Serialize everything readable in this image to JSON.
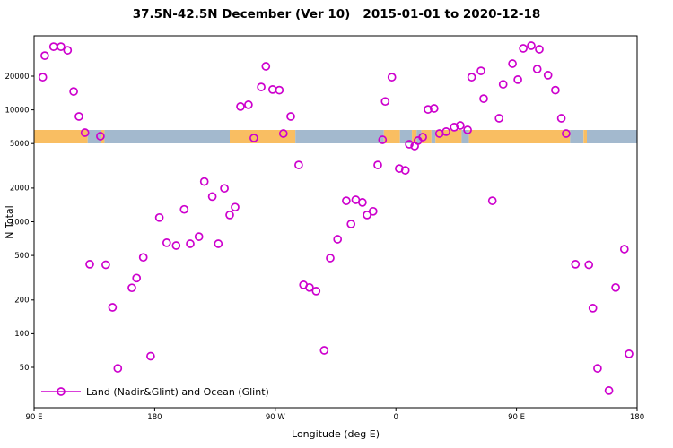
{
  "chart_data": {
    "type": "scatter",
    "title": "37.5N-42.5N December (Ver 10)   2015-01-01 to 2020-12-18",
    "xlabel": "Longitude (deg E)",
    "ylabel": "N Total",
    "y_scale": "log10",
    "grid": false,
    "x_axis": {
      "range": [
        90,
        540
      ],
      "ticks": [
        90,
        180,
        270,
        360,
        450,
        540
      ],
      "tick_labels": [
        "90 E",
        "180",
        "90 W",
        "0",
        "90 E",
        "180"
      ]
    },
    "y_axis": {
      "range": [
        22,
        45800
      ],
      "ticks": [
        50,
        100,
        200,
        500,
        1000,
        2000,
        5000,
        10000,
        20000
      ],
      "tick_labels": [
        "50",
        "100",
        "200",
        "500",
        "1000",
        "2000",
        "5000",
        "10000",
        "20000"
      ]
    },
    "legend": {
      "position": "bottom-left",
      "entries": [
        {
          "label": "Land (Nadir&Glint) and Ocean (Glint)",
          "marker": "open-circle-on-line",
          "color": "#CD00CD"
        }
      ]
    },
    "surface_band": {
      "value_center": 5760,
      "colors": {
        "land": "#F9BE62",
        "ocean": "#A3B9CE"
      },
      "segments": [
        {
          "from": 90,
          "to": 130,
          "type": "land"
        },
        {
          "from": 130,
          "to": 140,
          "type": "ocean"
        },
        {
          "from": 140,
          "to": 142.5,
          "type": "land"
        },
        {
          "from": 142.5,
          "to": 236,
          "type": "ocean"
        },
        {
          "from": 236,
          "to": 285,
          "type": "land"
        },
        {
          "from": 285,
          "to": 351,
          "type": "ocean"
        },
        {
          "from": 351,
          "to": 363,
          "type": "land"
        },
        {
          "from": 363,
          "to": 372,
          "type": "ocean"
        },
        {
          "from": 372,
          "to": 375.5,
          "type": "land"
        },
        {
          "from": 375.5,
          "to": 379,
          "type": "ocean"
        },
        {
          "from": 379,
          "to": 386.5,
          "type": "land"
        },
        {
          "from": 386.5,
          "to": 389.5,
          "type": "ocean"
        },
        {
          "from": 389.5,
          "to": 409,
          "type": "land"
        },
        {
          "from": 409,
          "to": 414.5,
          "type": "ocean"
        },
        {
          "from": 414.5,
          "to": 490,
          "type": "land"
        },
        {
          "from": 490,
          "to": 500,
          "type": "ocean"
        },
        {
          "from": 500,
          "to": 502.5,
          "type": "land"
        },
        {
          "from": 502.5,
          "to": 540,
          "type": "ocean"
        }
      ]
    },
    "series": [
      {
        "name": "N Total vs longitude",
        "color": "#CD00CD",
        "marker": "open-circle",
        "points": [
          [
            98,
            30500
          ],
          [
            104.5,
            36700
          ],
          [
            110,
            36700
          ],
          [
            115,
            34100
          ],
          [
            96.5,
            19600
          ],
          [
            119.5,
            14600
          ],
          [
            123.5,
            8730
          ],
          [
            128,
            6260
          ],
          [
            139.5,
            5820
          ],
          [
            131.5,
            417
          ],
          [
            143.5,
            413
          ],
          [
            148.5,
            172
          ],
          [
            152.5,
            49
          ],
          [
            163,
            257
          ],
          [
            166.5,
            314
          ],
          [
            171.5,
            481
          ],
          [
            177,
            63
          ],
          [
            183.5,
            1090
          ],
          [
            189,
            650
          ],
          [
            196,
            614
          ],
          [
            202,
            1290
          ],
          [
            206.5,
            636
          ],
          [
            213,
            736
          ],
          [
            217,
            2290
          ],
          [
            223,
            1680
          ],
          [
            227.5,
            636
          ],
          [
            232,
            1990
          ],
          [
            236,
            1150
          ],
          [
            240,
            1350
          ],
          [
            244,
            10700
          ],
          [
            250,
            11100
          ],
          [
            254,
            5610
          ],
          [
            259.5,
            16000
          ],
          [
            263,
            24500
          ],
          [
            268,
            15200
          ],
          [
            273,
            15000
          ],
          [
            276,
            6150
          ],
          [
            281.5,
            8730
          ],
          [
            287.5,
            3220
          ],
          [
            291,
            273
          ],
          [
            295.5,
            259
          ],
          [
            300.5,
            240
          ],
          [
            306.5,
            71
          ],
          [
            311,
            474
          ],
          [
            316.5,
            698
          ],
          [
            323,
            1540
          ],
          [
            326.5,
            955
          ],
          [
            330,
            1570
          ],
          [
            335,
            1490
          ],
          [
            338.5,
            1150
          ],
          [
            343,
            1240
          ],
          [
            346.5,
            3220
          ],
          [
            350,
            5400
          ],
          [
            352,
            11900
          ],
          [
            357,
            19600
          ],
          [
            362.5,
            2990
          ],
          [
            367,
            2880
          ],
          [
            370,
            4930
          ],
          [
            374,
            4750
          ],
          [
            376.5,
            5310
          ],
          [
            380,
            5710
          ],
          [
            384,
            10100
          ],
          [
            388.5,
            10300
          ],
          [
            392.5,
            6150
          ],
          [
            397.5,
            6390
          ],
          [
            403.5,
            7000
          ],
          [
            408,
            7260
          ],
          [
            413.5,
            6620
          ],
          [
            416.5,
            19600
          ],
          [
            423.5,
            22300
          ],
          [
            425.5,
            12600
          ],
          [
            432,
            1540
          ],
          [
            437,
            8410
          ],
          [
            440,
            16900
          ],
          [
            447,
            25900
          ],
          [
            451,
            18600
          ],
          [
            455,
            35400
          ],
          [
            461,
            37400
          ],
          [
            467,
            34800
          ],
          [
            465.5,
            23200
          ],
          [
            473.5,
            20400
          ],
          [
            479,
            15000
          ],
          [
            483.5,
            8410
          ],
          [
            487,
            6150
          ],
          [
            494,
            417
          ],
          [
            504,
            413
          ],
          [
            507,
            169
          ],
          [
            510.5,
            49
          ],
          [
            519,
            31
          ],
          [
            524,
            259
          ],
          [
            530.5,
            570
          ],
          [
            534,
            66
          ]
        ]
      }
    ]
  }
}
